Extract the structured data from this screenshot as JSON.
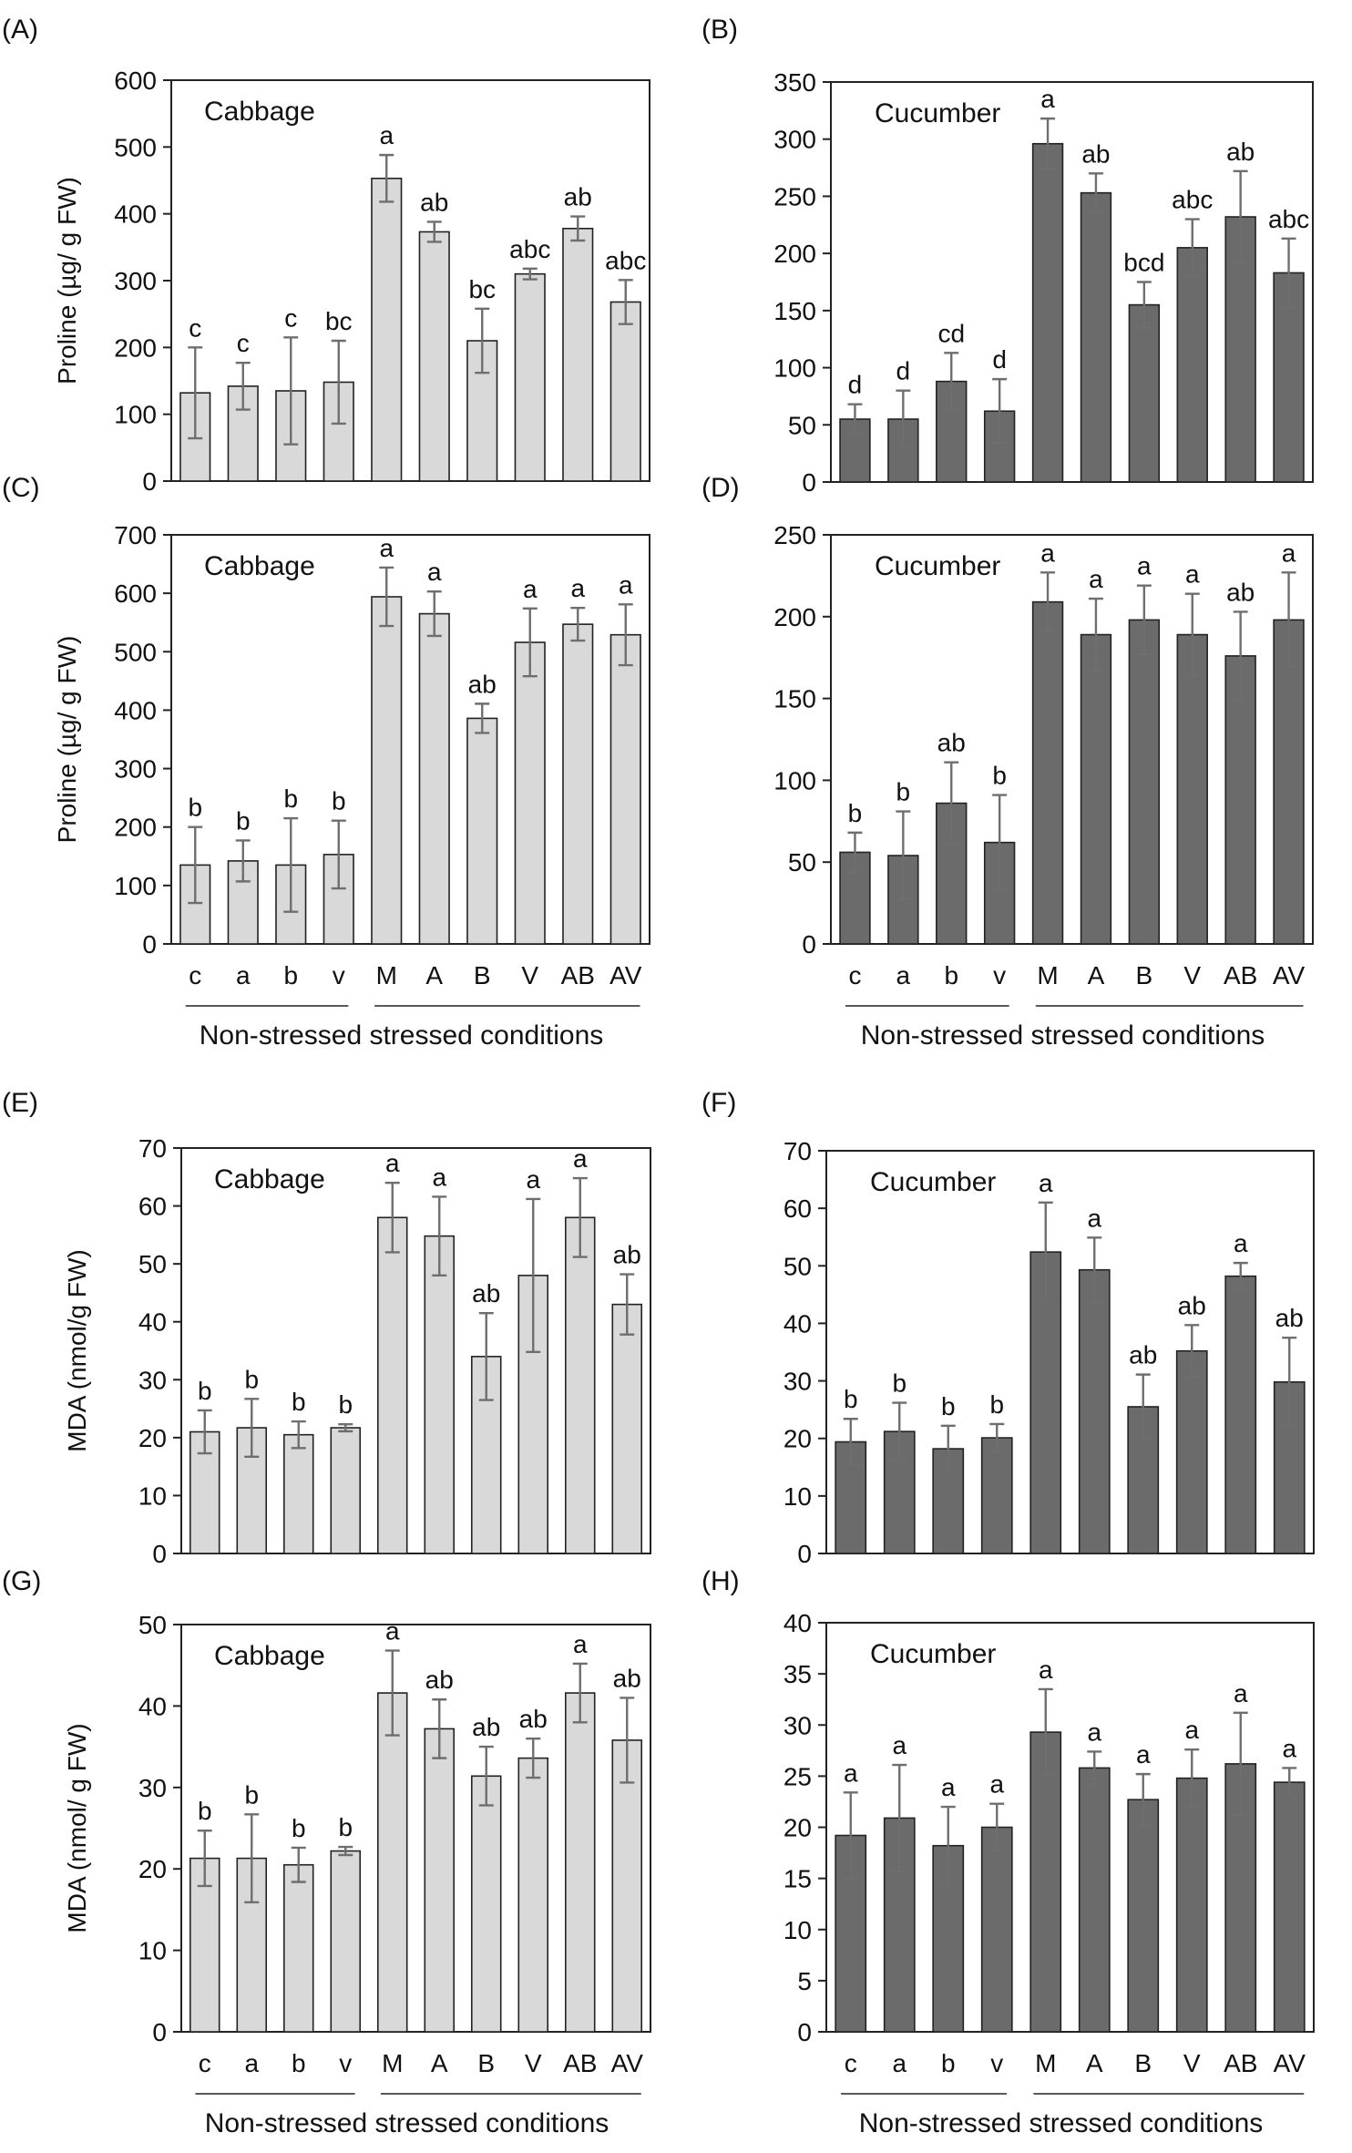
{
  "colors": {
    "cabbage": "#d9d9d9",
    "cucumber": "#6b6b6b",
    "error": "#6e6e6e",
    "axis": "#222222"
  },
  "chart_data": [
    {
      "panel": "(A)",
      "type": "bar",
      "title": "Cabbage",
      "ylabel": "Proline (µg/ g FW)",
      "ylim": [
        0,
        600
      ],
      "yticks": [
        0,
        100,
        200,
        300,
        400,
        500,
        600
      ],
      "categories": [
        "c",
        "a",
        "b",
        "v",
        "M",
        "A",
        "B",
        "V",
        "AB",
        "AV"
      ],
      "values": [
        132,
        142,
        135,
        148,
        453,
        373,
        210,
        310,
        378,
        268
      ],
      "errors": [
        68,
        35,
        80,
        62,
        35,
        15,
        48,
        8,
        18,
        33
      ],
      "letters": [
        "c",
        "c",
        "c",
        "bc",
        "a",
        "ab",
        "bc",
        "abc",
        "ab",
        "abc"
      ]
    },
    {
      "panel": "(B)",
      "type": "bar",
      "title": "Cucumber",
      "ylabel": "",
      "ylim": [
        0,
        350
      ],
      "yticks": [
        0,
        50,
        100,
        150,
        200,
        250,
        300,
        350
      ],
      "categories": [
        "c",
        "a",
        "b",
        "v",
        "M",
        "A",
        "B",
        "V",
        "AB",
        "AV"
      ],
      "values": [
        55,
        55,
        88,
        62,
        296,
        253,
        155,
        205,
        232,
        183
      ],
      "errors": [
        13,
        25,
        25,
        28,
        22,
        17,
        20,
        25,
        40,
        30
      ],
      "letters": [
        "d",
        "d",
        "cd",
        "d",
        "a",
        "ab",
        "bcd",
        "abc",
        "ab",
        "abc"
      ]
    },
    {
      "panel": "(C)",
      "type": "bar",
      "title": "Cabbage",
      "ylabel": "Proline (µg/ g FW)",
      "ylim": [
        0,
        700
      ],
      "yticks": [
        0,
        100,
        200,
        300,
        400,
        500,
        600,
        700
      ],
      "categories": [
        "c",
        "a",
        "b",
        "v",
        "M",
        "A",
        "B",
        "V",
        "AB",
        "AV"
      ],
      "values": [
        135,
        142,
        135,
        153,
        594,
        565,
        386,
        516,
        547,
        529
      ],
      "errors": [
        65,
        35,
        80,
        58,
        50,
        38,
        25,
        58,
        28,
        52
      ],
      "letters": [
        "b",
        "b",
        "b",
        "b",
        "a",
        "a",
        "ab",
        "a",
        "a",
        "a"
      ],
      "xlabel": "Non-stressed stressed conditions"
    },
    {
      "panel": "(D)",
      "type": "bar",
      "title": "Cucumber",
      "ylabel": "",
      "ylim": [
        0,
        250
      ],
      "yticks": [
        0,
        50,
        100,
        150,
        200,
        250
      ],
      "categories": [
        "c",
        "a",
        "b",
        "v",
        "M",
        "A",
        "B",
        "V",
        "AB",
        "AV"
      ],
      "values": [
        56,
        54,
        86,
        62,
        209,
        189,
        198,
        189,
        176,
        198
      ],
      "errors": [
        12,
        27,
        25,
        29,
        18,
        22,
        21,
        25,
        27,
        29
      ],
      "letters": [
        "b",
        "b",
        "ab",
        "b",
        "a",
        "a",
        "a",
        "a",
        "ab",
        "a"
      ],
      "xlabel": "Non-stressed stressed conditions"
    },
    {
      "panel": "(E)",
      "type": "bar",
      "title": "Cabbage",
      "ylabel": "MDA (nmol/g FW)",
      "ylim": [
        0,
        70
      ],
      "yticks": [
        0,
        10,
        20,
        30,
        40,
        50,
        60,
        70
      ],
      "categories": [
        "c",
        "a",
        "b",
        "v",
        "M",
        "A",
        "B",
        "V",
        "AB",
        "AV"
      ],
      "values": [
        21,
        21.7,
        20.5,
        21.7,
        58,
        54.8,
        34,
        48,
        58,
        43
      ],
      "errors": [
        3.7,
        5,
        2.3,
        0.6,
        6,
        6.8,
        7.5,
        13.2,
        6.8,
        5.2
      ],
      "letters": [
        "b",
        "b",
        "b",
        "b",
        "a",
        "a",
        "ab",
        "a",
        "a",
        "ab"
      ]
    },
    {
      "panel": "(F)",
      "type": "bar",
      "title": "Cucumber",
      "ylabel": "",
      "ylim": [
        0,
        70
      ],
      "yticks": [
        0,
        10,
        20,
        30,
        40,
        50,
        60,
        70
      ],
      "categories": [
        "c",
        "a",
        "b",
        "v",
        "M",
        "A",
        "B",
        "V",
        "AB",
        "AV"
      ],
      "values": [
        19.4,
        21.2,
        18.2,
        20.1,
        52.4,
        49.3,
        25.5,
        35.2,
        48.2,
        29.8
      ],
      "errors": [
        4,
        5,
        4,
        2.4,
        8.6,
        5.6,
        5.6,
        4.5,
        2.3,
        7.7
      ],
      "letters": [
        "b",
        "b",
        "b",
        "b",
        "a",
        "a",
        "ab",
        "ab",
        "a",
        "ab"
      ]
    },
    {
      "panel": "(G)",
      "type": "bar",
      "title": "Cabbage",
      "ylabel": "MDA (nmol/ g FW)",
      "ylim": [
        0,
        50
      ],
      "yticks": [
        0,
        10,
        20,
        30,
        40,
        50
      ],
      "categories": [
        "c",
        "a",
        "b",
        "v",
        "M",
        "A",
        "B",
        "V",
        "AB",
        "AV"
      ],
      "values": [
        21.3,
        21.3,
        20.5,
        22.2,
        41.6,
        37.2,
        31.4,
        33.6,
        41.6,
        35.8
      ],
      "errors": [
        3.4,
        5.4,
        2.1,
        0.5,
        5.2,
        3.6,
        3.6,
        2.4,
        3.6,
        5.2
      ],
      "letters": [
        "b",
        "b",
        "b",
        "b",
        "a",
        "ab",
        "ab",
        "ab",
        "a",
        "ab"
      ],
      "xlabel": "Non-stressed stressed conditions"
    },
    {
      "panel": "(H)",
      "type": "bar",
      "title": "Cucumber",
      "ylabel": "",
      "ylim": [
        0,
        40
      ],
      "yticks": [
        0,
        5,
        10,
        15,
        20,
        25,
        30,
        35,
        40
      ],
      "categories": [
        "c",
        "a",
        "b",
        "v",
        "M",
        "A",
        "B",
        "V",
        "AB",
        "AV"
      ],
      "values": [
        19.2,
        20.9,
        18.2,
        20,
        29.3,
        25.8,
        22.7,
        24.8,
        26.2,
        24.4
      ],
      "errors": [
        4.2,
        5.2,
        3.8,
        2.3,
        4.2,
        1.6,
        2.5,
        2.8,
        5.0,
        1.4
      ],
      "letters": [
        "a",
        "a",
        "a",
        "a",
        "a",
        "a",
        "a",
        "a",
        "a",
        "a"
      ],
      "xlabel": "Non-stressed stressed conditions"
    }
  ]
}
